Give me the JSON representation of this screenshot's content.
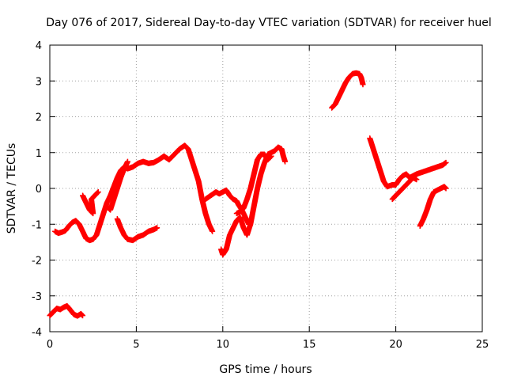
{
  "chart_data": {
    "type": "scatter",
    "title": "Day 076 of 2017, Sidereal Day-to-day VTEC variation (SDTVAR) for receiver huel",
    "xlabel": "GPS time / hours",
    "ylabel": "SDTVAR / TECUs",
    "xlim": [
      0,
      25
    ],
    "ylim": [
      -4,
      4
    ],
    "x_ticks": [
      0,
      5,
      10,
      15,
      20,
      25
    ],
    "y_ticks": [
      -4,
      -3,
      -2,
      -1,
      0,
      1,
      2,
      3,
      4
    ],
    "grid": true,
    "marker": "+",
    "color": "#ff0000",
    "segments": [
      [
        [
          0.0,
          -3.55
        ],
        [
          0.2,
          -3.45
        ],
        [
          0.4,
          -3.35
        ],
        [
          0.6,
          -3.38
        ],
        [
          0.8,
          -3.32
        ],
        [
          1.0,
          -3.28
        ],
        [
          1.2,
          -3.4
        ],
        [
          1.4,
          -3.52
        ],
        [
          1.6,
          -3.56
        ],
        [
          1.8,
          -3.5
        ],
        [
          1.9,
          -3.55
        ]
      ],
      [
        [
          0.3,
          -1.2
        ],
        [
          0.5,
          -1.25
        ],
        [
          0.7,
          -1.22
        ],
        [
          0.9,
          -1.18
        ],
        [
          1.1,
          -1.05
        ],
        [
          1.3,
          -0.95
        ],
        [
          1.5,
          -0.9
        ],
        [
          1.7,
          -1.0
        ],
        [
          1.9,
          -1.2
        ],
        [
          2.1,
          -1.4
        ],
        [
          2.3,
          -1.45
        ],
        [
          2.5,
          -1.42
        ],
        [
          2.7,
          -1.3
        ],
        [
          2.9,
          -1.0
        ],
        [
          3.1,
          -0.7
        ],
        [
          3.3,
          -0.4
        ],
        [
          3.5,
          -0.2
        ],
        [
          3.7,
          0.05
        ],
        [
          3.9,
          0.3
        ],
        [
          4.1,
          0.5
        ],
        [
          4.3,
          0.6
        ],
        [
          4.5,
          0.55
        ],
        [
          4.8,
          0.6
        ],
        [
          5.1,
          0.7
        ],
        [
          5.4,
          0.75
        ],
        [
          5.7,
          0.7
        ],
        [
          6.0,
          0.72
        ],
        [
          6.3,
          0.8
        ],
        [
          6.6,
          0.9
        ],
        [
          6.9,
          0.8
        ],
        [
          7.2,
          0.95
        ],
        [
          7.5,
          1.1
        ],
        [
          7.8,
          1.2
        ],
        [
          8.0,
          1.1
        ],
        [
          8.2,
          0.8
        ],
        [
          8.4,
          0.5
        ],
        [
          8.6,
          0.2
        ],
        [
          8.8,
          -0.3
        ],
        [
          9.0,
          -0.7
        ],
        [
          9.2,
          -1.0
        ],
        [
          9.4,
          -1.2
        ]
      ],
      [
        [
          1.9,
          -0.2
        ],
        [
          2.1,
          -0.4
        ],
        [
          2.3,
          -0.6
        ],
        [
          2.5,
          -0.7
        ],
        [
          2.4,
          -0.3
        ],
        [
          2.6,
          -0.2
        ],
        [
          2.8,
          -0.1
        ]
      ],
      [
        [
          3.3,
          -0.5
        ],
        [
          3.5,
          -0.6
        ],
        [
          3.7,
          -0.3
        ],
        [
          3.9,
          0.0
        ],
        [
          4.1,
          0.3
        ],
        [
          4.3,
          0.55
        ],
        [
          4.5,
          0.75
        ]
      ],
      [
        [
          3.9,
          -0.85
        ],
        [
          4.1,
          -1.1
        ],
        [
          4.3,
          -1.3
        ],
        [
          4.5,
          -1.42
        ],
        [
          4.8,
          -1.45
        ],
        [
          5.1,
          -1.35
        ],
        [
          5.4,
          -1.3
        ],
        [
          5.7,
          -1.2
        ],
        [
          6.0,
          -1.15
        ],
        [
          6.2,
          -1.1
        ]
      ],
      [
        [
          9.0,
          -0.3
        ],
        [
          9.3,
          -0.2
        ],
        [
          9.6,
          -0.1
        ],
        [
          9.8,
          -0.15
        ],
        [
          10.0,
          -0.1
        ],
        [
          10.2,
          -0.05
        ],
        [
          10.4,
          -0.2
        ],
        [
          10.6,
          -0.3
        ],
        [
          10.8,
          -0.35
        ],
        [
          10.9,
          -0.45
        ],
        [
          11.1,
          -0.6
        ],
        [
          11.3,
          -0.8
        ],
        [
          11.5,
          -1.0
        ]
      ],
      [
        [
          9.9,
          -1.7
        ],
        [
          10.0,
          -1.85
        ],
        [
          10.2,
          -1.7
        ],
        [
          10.4,
          -1.3
        ],
        [
          10.6,
          -1.1
        ],
        [
          10.8,
          -0.9
        ],
        [
          11.0,
          -0.8
        ],
        [
          11.2,
          -1.1
        ],
        [
          11.4,
          -1.3
        ],
        [
          11.6,
          -1.0
        ],
        [
          11.8,
          -0.5
        ],
        [
          12.0,
          0.0
        ],
        [
          12.2,
          0.4
        ],
        [
          12.4,
          0.7
        ],
        [
          12.6,
          0.95
        ],
        [
          12.8,
          1.0
        ],
        [
          13.0,
          1.05
        ],
        [
          13.2,
          1.15
        ],
        [
          13.4,
          1.1
        ],
        [
          13.5,
          0.9
        ],
        [
          13.6,
          0.75
        ]
      ],
      [
        [
          10.8,
          -0.7
        ],
        [
          11.0,
          -0.65
        ],
        [
          11.2,
          -0.55
        ],
        [
          11.4,
          -0.3
        ],
        [
          11.6,
          0.0
        ],
        [
          11.8,
          0.4
        ],
        [
          12.0,
          0.8
        ],
        [
          12.2,
          0.95
        ],
        [
          12.4,
          0.95
        ],
        [
          12.6,
          0.8
        ],
        [
          12.8,
          0.9
        ]
      ],
      [
        [
          16.3,
          2.25
        ],
        [
          16.5,
          2.35
        ],
        [
          16.7,
          2.55
        ],
        [
          16.9,
          2.75
        ],
        [
          17.1,
          2.95
        ],
        [
          17.3,
          3.1
        ],
        [
          17.5,
          3.2
        ],
        [
          17.7,
          3.22
        ],
        [
          17.9,
          3.2
        ],
        [
          18.0,
          3.1
        ],
        [
          18.1,
          2.9
        ]
      ],
      [
        [
          18.5,
          1.4
        ],
        [
          18.7,
          1.1
        ],
        [
          18.9,
          0.8
        ],
        [
          19.1,
          0.5
        ],
        [
          19.3,
          0.2
        ],
        [
          19.5,
          0.05
        ],
        [
          19.8,
          0.1
        ],
        [
          20.0,
          0.1
        ],
        [
          20.2,
          0.25
        ],
        [
          20.4,
          0.35
        ],
        [
          20.6,
          0.4
        ],
        [
          20.8,
          0.3
        ],
        [
          21.0,
          0.35
        ],
        [
          21.2,
          0.4
        ],
        [
          21.5,
          0.45
        ],
        [
          21.8,
          0.5
        ],
        [
          22.1,
          0.55
        ],
        [
          22.4,
          0.6
        ],
        [
          22.7,
          0.65
        ],
        [
          22.9,
          0.72
        ]
      ],
      [
        [
          19.8,
          -0.3
        ],
        [
          20.0,
          -0.2
        ],
        [
          20.2,
          -0.1
        ],
        [
          20.4,
          0.0
        ],
        [
          20.6,
          0.1
        ],
        [
          20.8,
          0.2
        ],
        [
          21.0,
          0.3
        ],
        [
          21.2,
          0.25
        ]
      ],
      [
        [
          21.4,
          -1.05
        ],
        [
          21.6,
          -0.85
        ],
        [
          21.8,
          -0.6
        ],
        [
          22.0,
          -0.3
        ],
        [
          22.2,
          -0.1
        ],
        [
          22.4,
          -0.05
        ],
        [
          22.6,
          0.0
        ],
        [
          22.8,
          0.05
        ],
        [
          22.9,
          0.0
        ]
      ]
    ]
  }
}
